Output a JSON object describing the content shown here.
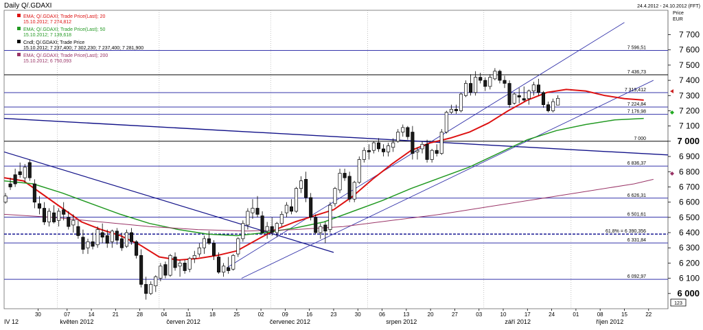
{
  "header": {
    "title": "Daily Q/.GDAXI",
    "date_range": "24.4.2012 - 24.10.2012 (FFT)",
    "price_label": "Price",
    "currency_label": "EUR",
    "corner_value": "123"
  },
  "legend": [
    {
      "name": "EMA; Q/.GDAXI; Trade Price(Last); 20",
      "value": "15.10.2012; 7 274,812",
      "color": "#dd1111",
      "value_color": "#dd1111"
    },
    {
      "name": "EMA; Q/.GDAXI; Trade Price(Last); 50",
      "value": "15.10.2012; 7 139,618",
      "color": "#229922",
      "value_color": "#229922"
    },
    {
      "name": "Cndl; Q/.GDAXI; Trade Price",
      "value": "15.10.2012; 7 237,400; 7 302,230; 7 237,400; 7 281,900",
      "color": "#000000",
      "value_color": "#000000"
    },
    {
      "name": "EMA; Q/.GDAXI; Trade Price(Last); 200",
      "value": "15.10.2012; 6 750,093",
      "color": "#993366",
      "value_color": "#993366"
    }
  ],
  "chart_data": {
    "type": "candlestick",
    "title": "Daily Q/.GDAXI",
    "ylabel": "Price EUR",
    "ylim": [
      5900,
      7860
    ],
    "y_ticks": [
      {
        "value": 6000,
        "label": "6 000",
        "bold": true
      },
      {
        "value": 6100,
        "label": "6 100",
        "bold": false
      },
      {
        "value": 6200,
        "label": "6 200",
        "bold": false
      },
      {
        "value": 6300,
        "label": "6 300",
        "bold": false
      },
      {
        "value": 6400,
        "label": "6 400",
        "bold": false
      },
      {
        "value": 6500,
        "label": "6 500",
        "bold": false
      },
      {
        "value": 6600,
        "label": "6 600",
        "bold": false
      },
      {
        "value": 6700,
        "label": "6 700",
        "bold": false
      },
      {
        "value": 6800,
        "label": "6 800",
        "bold": false
      },
      {
        "value": 6900,
        "label": "6 900",
        "bold": false
      },
      {
        "value": 7000,
        "label": "7 000",
        "bold": true
      },
      {
        "value": 7100,
        "label": "7 100",
        "bold": false
      },
      {
        "value": 7200,
        "label": "7 200",
        "bold": false
      },
      {
        "value": 7300,
        "label": "7 300",
        "bold": false
      },
      {
        "value": 7400,
        "label": "7 400",
        "bold": false
      },
      {
        "value": 7500,
        "label": "7 500",
        "bold": false
      },
      {
        "value": 7600,
        "label": "7 600",
        "bold": false
      },
      {
        "value": 7700,
        "label": "7 700",
        "bold": false
      }
    ],
    "x_ticks": [
      "30",
      "07",
      "14",
      "21",
      "28",
      "04",
      "11",
      "18",
      "25",
      "02",
      "09",
      "16",
      "23",
      "30",
      "06",
      "13",
      "20",
      "27",
      "03",
      "10",
      "17",
      "24",
      "01",
      "08",
      "15",
      "22"
    ],
    "x_tick_days": [
      7,
      13,
      18,
      23,
      28,
      33,
      38,
      43,
      48,
      53,
      58,
      63,
      68,
      73,
      78,
      83,
      88,
      93,
      98,
      103,
      108,
      113,
      118,
      123,
      128,
      133
    ],
    "months": [
      {
        "label": "IV 12",
        "day": 0
      },
      {
        "label": "květen 2012",
        "day": 15
      },
      {
        "label": "červen 2012",
        "day": 37
      },
      {
        "label": "červenec 2012",
        "day": 59
      },
      {
        "label": "srpen 2012",
        "day": 82
      },
      {
        "label": "září 2012",
        "day": 106
      },
      {
        "label": "říjen 2012",
        "day": 125
      }
    ],
    "month_boundaries": [
      11,
      32,
      55,
      75,
      99,
      117
    ],
    "x_range": [
      0,
      137
    ],
    "levels": [
      {
        "value": 7596.51,
        "label": "7 596,51",
        "style": "solid",
        "color": "#3333aa"
      },
      {
        "value": 7436.73,
        "label": "7 436,73",
        "style": "solid",
        "color": "#000000"
      },
      {
        "value": 7319.412,
        "label": "7 319,412",
        "style": "solid",
        "color": "#3333aa"
      },
      {
        "value": 7224.84,
        "label": "7 224,84",
        "style": "solid",
        "color": "#3333aa"
      },
      {
        "value": 7176.98,
        "label": "7 176,98",
        "style": "solid",
        "color": "#3333aa"
      },
      {
        "value": 7000,
        "label": "7 000",
        "style": "solid",
        "color": "#000000"
      },
      {
        "value": 6836.37,
        "label": "6 836,37",
        "style": "solid",
        "color": "#3333aa"
      },
      {
        "value": 6626.31,
        "label": "6 626,31",
        "style": "solid",
        "color": "#3333aa"
      },
      {
        "value": 6501.61,
        "label": "6 501,61",
        "style": "solid",
        "color": "#3333aa"
      },
      {
        "value": 6390.356,
        "label": "61,8% = 6 390,356",
        "style": "dashed",
        "color": "#000088"
      },
      {
        "value": 6331.84,
        "label": "6 331,84",
        "style": "solid",
        "color": "#3333aa"
      },
      {
        "value": 6092.97,
        "label": "6 092,97",
        "style": "solid",
        "color": "#3333aa"
      }
    ],
    "trendlines": [
      {
        "name": "long-downtrend",
        "color": "#111188",
        "width": 1.4,
        "points": [
          [
            0,
            7150
          ],
          [
            137,
            6910
          ]
        ]
      },
      {
        "name": "may-downtrend",
        "color": "#111188",
        "width": 1.2,
        "points": [
          [
            0,
            6930
          ],
          [
            68,
            6270
          ]
        ]
      },
      {
        "name": "channel-upper",
        "color": "#3333aa",
        "width": 0.9,
        "points": [
          [
            46,
            6170
          ],
          [
            128,
            7780
          ]
        ]
      },
      {
        "name": "channel-lower",
        "color": "#3333aa",
        "width": 0.9,
        "points": [
          [
            49,
            6100
          ],
          [
            134,
            7400
          ]
        ]
      }
    ],
    "candles": [
      [
        6600,
        6660,
        6590,
        6640
      ],
      [
        6720,
        6760,
        6680,
        6700
      ],
      [
        6780,
        6820,
        6700,
        6720
      ],
      [
        6800,
        6860,
        6760,
        6780
      ],
      [
        6760,
        6850,
        6730,
        6830
      ],
      [
        6860,
        6880,
        6740,
        6760
      ],
      [
        6720,
        6750,
        6560,
        6600
      ],
      [
        6590,
        6640,
        6520,
        6560
      ],
      [
        6560,
        6600,
        6450,
        6470
      ],
      [
        6470,
        6560,
        6440,
        6540
      ],
      [
        6530,
        6580,
        6460,
        6470
      ],
      [
        6480,
        6560,
        6440,
        6540
      ],
      [
        6550,
        6600,
        6480,
        6520
      ],
      [
        6500,
        6540,
        6420,
        6440
      ],
      [
        6450,
        6520,
        6400,
        6480
      ],
      [
        6440,
        6480,
        6360,
        6380
      ],
      [
        6370,
        6420,
        6260,
        6290
      ],
      [
        6300,
        6360,
        6260,
        6340
      ],
      [
        6340,
        6400,
        6290,
        6310
      ],
      [
        6320,
        6440,
        6300,
        6420
      ],
      [
        6400,
        6460,
        6330,
        6370
      ],
      [
        6380,
        6420,
        6300,
        6330
      ],
      [
        6340,
        6420,
        6300,
        6410
      ],
      [
        6410,
        6430,
        6320,
        6350
      ],
      [
        6360,
        6400,
        6280,
        6300
      ],
      [
        6310,
        6420,
        6300,
        6400
      ],
      [
        6400,
        6430,
        6320,
        6340
      ],
      [
        6340,
        6350,
        6230,
        6250
      ],
      [
        6250,
        6290,
        6040,
        6060
      ],
      [
        6060,
        6110,
        5960,
        6000
      ],
      [
        6000,
        6080,
        5990,
        6060
      ],
      [
        6050,
        6120,
        6010,
        6110
      ],
      [
        6100,
        6200,
        6080,
        6180
      ],
      [
        6190,
        6210,
        6100,
        6120
      ],
      [
        6120,
        6260,
        6110,
        6250
      ],
      [
        6240,
        6270,
        6150,
        6170
      ],
      [
        6180,
        6220,
        6110,
        6200
      ],
      [
        6200,
        6220,
        6130,
        6150
      ],
      [
        6160,
        6240,
        6140,
        6230
      ],
      [
        6230,
        6280,
        6200,
        6250
      ],
      [
        6260,
        6330,
        6240,
        6300
      ],
      [
        6300,
        6380,
        6260,
        6360
      ],
      [
        6360,
        6410,
        6320,
        6330
      ],
      [
        6330,
        6350,
        6220,
        6250
      ],
      [
        6240,
        6270,
        6130,
        6140
      ],
      [
        6140,
        6200,
        6110,
        6180
      ],
      [
        6170,
        6240,
        6130,
        6150
      ],
      [
        6160,
        6260,
        6150,
        6250
      ],
      [
        6260,
        6370,
        6240,
        6360
      ],
      [
        6360,
        6480,
        6340,
        6460
      ],
      [
        6450,
        6560,
        6420,
        6540
      ],
      [
        6530,
        6620,
        6490,
        6560
      ],
      [
        6560,
        6640,
        6500,
        6520
      ],
      [
        6510,
        6540,
        6390,
        6400
      ],
      [
        6410,
        6470,
        6360,
        6440
      ],
      [
        6440,
        6500,
        6380,
        6400
      ],
      [
        6400,
        6470,
        6370,
        6460
      ],
      [
        6460,
        6540,
        6440,
        6520
      ],
      [
        6530,
        6600,
        6500,
        6580
      ],
      [
        6570,
        6620,
        6520,
        6540
      ],
      [
        6540,
        6700,
        6530,
        6690
      ],
      [
        6690,
        6770,
        6660,
        6740
      ],
      [
        6750,
        6800,
        6600,
        6630
      ],
      [
        6630,
        6660,
        6480,
        6500
      ],
      [
        6500,
        6520,
        6390,
        6400
      ],
      [
        6400,
        6460,
        6360,
        6440
      ],
      [
        6450,
        6470,
        6330,
        6410
      ],
      [
        6420,
        6600,
        6400,
        6580
      ],
      [
        6590,
        6700,
        6570,
        6690
      ],
      [
        6680,
        6820,
        6660,
        6790
      ],
      [
        6790,
        6820,
        6740,
        6760
      ],
      [
        6770,
        6800,
        6600,
        6620
      ],
      [
        6620,
        6740,
        6600,
        6730
      ],
      [
        6730,
        6900,
        6720,
        6880
      ],
      [
        6880,
        6960,
        6860,
        6940
      ],
      [
        6940,
        6980,
        6880,
        6930
      ],
      [
        6940,
        7000,
        6920,
        6990
      ],
      [
        6990,
        7020,
        6930,
        6950
      ],
      [
        6950,
        6980,
        6900,
        6930
      ],
      [
        6930,
        6990,
        6900,
        6970
      ],
      [
        6960,
        7020,
        6930,
        6990
      ],
      [
        7000,
        7080,
        6990,
        7060
      ],
      [
        7060,
        7110,
        7030,
        7090
      ],
      [
        7090,
        7100,
        7010,
        7030
      ],
      [
        7060,
        7100,
        6880,
        6920
      ],
      [
        6930,
        6960,
        6880,
        6940
      ],
      [
        6950,
        7000,
        6920,
        6980
      ],
      [
        6980,
        7010,
        6860,
        6880
      ],
      [
        6880,
        6950,
        6860,
        6940
      ],
      [
        6940,
        6980,
        6900,
        6920
      ],
      [
        6920,
        7080,
        6910,
        7060
      ],
      [
        7060,
        7200,
        7050,
        7190
      ],
      [
        7190,
        7240,
        7180,
        7210
      ],
      [
        7210,
        7240,
        7180,
        7200
      ],
      [
        7200,
        7320,
        7190,
        7310
      ],
      [
        7300,
        7400,
        7290,
        7380
      ],
      [
        7380,
        7440,
        7300,
        7320
      ],
      [
        7320,
        7460,
        7300,
        7420
      ],
      [
        7420,
        7450,
        7380,
        7400
      ],
      [
        7400,
        7420,
        7330,
        7360
      ],
      [
        7360,
        7440,
        7340,
        7420
      ],
      [
        7410,
        7480,
        7400,
        7460
      ],
      [
        7460,
        7470,
        7380,
        7400
      ],
      [
        7400,
        7430,
        7350,
        7380
      ],
      [
        7380,
        7400,
        7220,
        7240
      ],
      [
        7250,
        7320,
        7240,
        7310
      ],
      [
        7300,
        7350,
        7250,
        7290
      ],
      [
        7280,
        7360,
        7260,
        7270
      ],
      [
        7280,
        7340,
        7240,
        7330
      ],
      [
        7330,
        7390,
        7300,
        7370
      ],
      [
        7370,
        7410,
        7300,
        7320
      ],
      [
        7320,
        7330,
        7220,
        7240
      ],
      [
        7240,
        7260,
        7190,
        7200
      ],
      [
        7200,
        7280,
        7190,
        7260
      ],
      [
        7237.4,
        7302.23,
        7237.4,
        7281.9
      ]
    ],
    "candle_start_day": 0,
    "ema_series": [
      {
        "name": "EMA 20",
        "color": "#dd1111",
        "width": 2,
        "points": [
          [
            0,
            6760
          ],
          [
            4,
            6740
          ],
          [
            8,
            6650
          ],
          [
            12,
            6560
          ],
          [
            16,
            6470
          ],
          [
            20,
            6420
          ],
          [
            24,
            6380
          ],
          [
            28,
            6320
          ],
          [
            32,
            6240
          ],
          [
            36,
            6220
          ],
          [
            40,
            6230
          ],
          [
            44,
            6250
          ],
          [
            48,
            6280
          ],
          [
            52,
            6350
          ],
          [
            56,
            6420
          ],
          [
            60,
            6470
          ],
          [
            64,
            6510
          ],
          [
            68,
            6550
          ],
          [
            72,
            6640
          ],
          [
            76,
            6750
          ],
          [
            80,
            6850
          ],
          [
            84,
            6940
          ],
          [
            88,
            6990
          ],
          [
            92,
            7020
          ],
          [
            96,
            7060
          ],
          [
            100,
            7120
          ],
          [
            104,
            7200
          ],
          [
            108,
            7270
          ],
          [
            112,
            7320
          ],
          [
            116,
            7340
          ],
          [
            120,
            7330
          ],
          [
            124,
            7300
          ],
          [
            128,
            7280
          ],
          [
            132,
            7270
          ]
        ]
      },
      {
        "name": "EMA 50",
        "color": "#229922",
        "width": 1.5,
        "points": [
          [
            0,
            6740
          ],
          [
            6,
            6720
          ],
          [
            12,
            6660
          ],
          [
            18,
            6590
          ],
          [
            24,
            6520
          ],
          [
            30,
            6460
          ],
          [
            36,
            6420
          ],
          [
            42,
            6390
          ],
          [
            48,
            6380
          ],
          [
            54,
            6400
          ],
          [
            60,
            6430
          ],
          [
            66,
            6470
          ],
          [
            72,
            6540
          ],
          [
            78,
            6610
          ],
          [
            84,
            6690
          ],
          [
            90,
            6760
          ],
          [
            96,
            6830
          ],
          [
            102,
            6920
          ],
          [
            108,
            7010
          ],
          [
            114,
            7070
          ],
          [
            120,
            7110
          ],
          [
            126,
            7140
          ],
          [
            132,
            7150
          ]
        ]
      },
      {
        "name": "EMA 200",
        "color": "#993366",
        "width": 1,
        "points": [
          [
            0,
            6520
          ],
          [
            10,
            6500
          ],
          [
            20,
            6470
          ],
          [
            30,
            6440
          ],
          [
            40,
            6420
          ],
          [
            50,
            6410
          ],
          [
            60,
            6420
          ],
          [
            70,
            6440
          ],
          [
            80,
            6480
          ],
          [
            90,
            6520
          ],
          [
            100,
            6570
          ],
          [
            110,
            6620
          ],
          [
            120,
            6670
          ],
          [
            130,
            6720
          ],
          [
            134,
            6750
          ]
        ]
      }
    ]
  }
}
